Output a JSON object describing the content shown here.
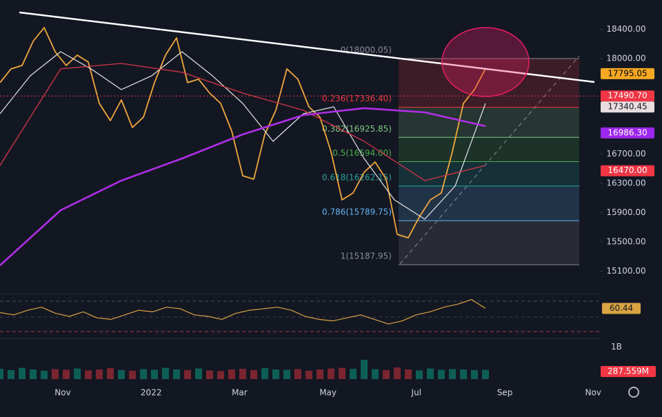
{
  "chart_data": [
    {
      "type": "line",
      "ylim": [
        14850,
        18800
      ],
      "yticks": [
        {
          "value": 18400,
          "label": "18400.00"
        },
        {
          "value": 18000,
          "label": "18000.00"
        },
        {
          "value": 16700,
          "label": "16700.00"
        },
        {
          "value": 16300,
          "label": "16300.00"
        },
        {
          "value": 15900,
          "label": "15900.00"
        },
        {
          "value": 15500,
          "label": "15500.00"
        },
        {
          "value": 15100,
          "label": "15100.00"
        }
      ],
      "series": [
        {
          "color": "#f2a93b",
          "values": [
            17672,
            17860,
            17907,
            18236,
            18424,
            18095,
            17907,
            18048,
            17954,
            17389,
            17154,
            17436,
            17060,
            17201,
            17672,
            18048,
            18283,
            17672,
            17719,
            17530,
            17389,
            17013,
            16402,
            16355,
            16966,
            17295,
            17860,
            17719,
            17342,
            17201,
            16731,
            16073,
            16167,
            16449,
            16590,
            16355,
            15602,
            15555,
            15838,
            16073,
            16167,
            16731,
            17389,
            17577,
            17860
          ]
        },
        {
          "color": "#e6e6e6",
          "values": [
            17248,
            17766,
            18095,
            17860,
            17577,
            17766,
            18095,
            17766,
            17389,
            16872,
            17248,
            17342,
            16637,
            16073,
            15809,
            16261,
            17389
          ]
        },
        {
          "color": "#d7364b",
          "values": [
            16543,
            17860,
            17935,
            17813,
            17530,
            17295,
            16872,
            16336,
            16543
          ]
        },
        {
          "color": "#b12ee8",
          "values": [
            15179,
            15932,
            16336,
            16637,
            16966,
            17229,
            17324,
            17267,
            17079
          ]
        }
      ],
      "fib": [
        {
          "value": 18000.05,
          "label": "0(18000.05)",
          "color": "#8a8d96"
        },
        {
          "value": 17336.4,
          "label": "0.236(17336.40)",
          "color": "#f23645"
        },
        {
          "value": 16925.85,
          "label": "0.382(16925.85)",
          "color": "#81c784"
        },
        {
          "value": 16594.0,
          "label": "0.5(16594.00)",
          "color": "#4caf50"
        },
        {
          "value": 16262.15,
          "label": "0.618(16262.15)",
          "color": "#26a69a"
        },
        {
          "value": 15789.75,
          "label": "0.786(15789.75)",
          "color": "#64b5f6"
        },
        {
          "value": 15187.95,
          "label": "1(15187.95)",
          "color": "#8a8d96"
        }
      ],
      "price_tags": [
        {
          "value": 17795.05,
          "label": "17795.05",
          "color": "#f7a823",
          "text_color": "#000000"
        },
        {
          "value": 17490.7,
          "label": "17490.70",
          "color": "#f23645",
          "text_color": "#ffffff"
        },
        {
          "value": 17340.45,
          "label": "17340.45",
          "color": "#e9dde0",
          "text_color": "#131722"
        },
        {
          "value": 16986.3,
          "label": "16986.30",
          "color": "#9c27f0",
          "text_color": "#ffffff"
        },
        {
          "value": 16470.0,
          "label": "16470.00",
          "color": "#f23645",
          "text_color": "#ffffff"
        }
      ]
    },
    {
      "type": "line",
      "ylim": [
        22,
        78
      ],
      "series": [
        {
          "color": "#d9a441",
          "values": [
            55,
            52,
            58,
            62,
            54,
            50,
            56,
            48,
            46,
            52,
            58,
            56,
            62,
            60,
            52,
            50,
            46,
            54,
            58,
            60,
            62,
            58,
            50,
            46,
            44,
            48,
            52,
            46,
            40,
            44,
            52,
            56,
            62,
            66,
            72,
            60.44
          ]
        }
      ]
    },
    {
      "type": "bar",
      "ylim": [
        0,
        1200
      ],
      "yticks": [
        {
          "value": 1000,
          "label": "1B"
        }
      ],
      "values": [
        320,
        280,
        350,
        300,
        260,
        310,
        290,
        330,
        270,
        300,
        340,
        280,
        260,
        310,
        290,
        350,
        300,
        280,
        330,
        270,
        250,
        300,
        320,
        280,
        340,
        300,
        290,
        310,
        260,
        300,
        330,
        350,
        320,
        600,
        310,
        280,
        360,
        300,
        270,
        330,
        290,
        310,
        300,
        280,
        287.559
      ],
      "value_labels": [
        null,
        null,
        null,
        null,
        null,
        null,
        null,
        null,
        null,
        null,
        null,
        null,
        null,
        null,
        null,
        null,
        null,
        null,
        null,
        null,
        null,
        null,
        null,
        null,
        null,
        null,
        null,
        null,
        null,
        null,
        null,
        null,
        null,
        null,
        null,
        null,
        null,
        null,
        null,
        null,
        null,
        null,
        null,
        null,
        "287.559M"
      ],
      "xtick_labels": [
        "Nov",
        "2022",
        "Mar",
        "May",
        "Jul",
        "Sep",
        "Nov"
      ]
    }
  ]
}
